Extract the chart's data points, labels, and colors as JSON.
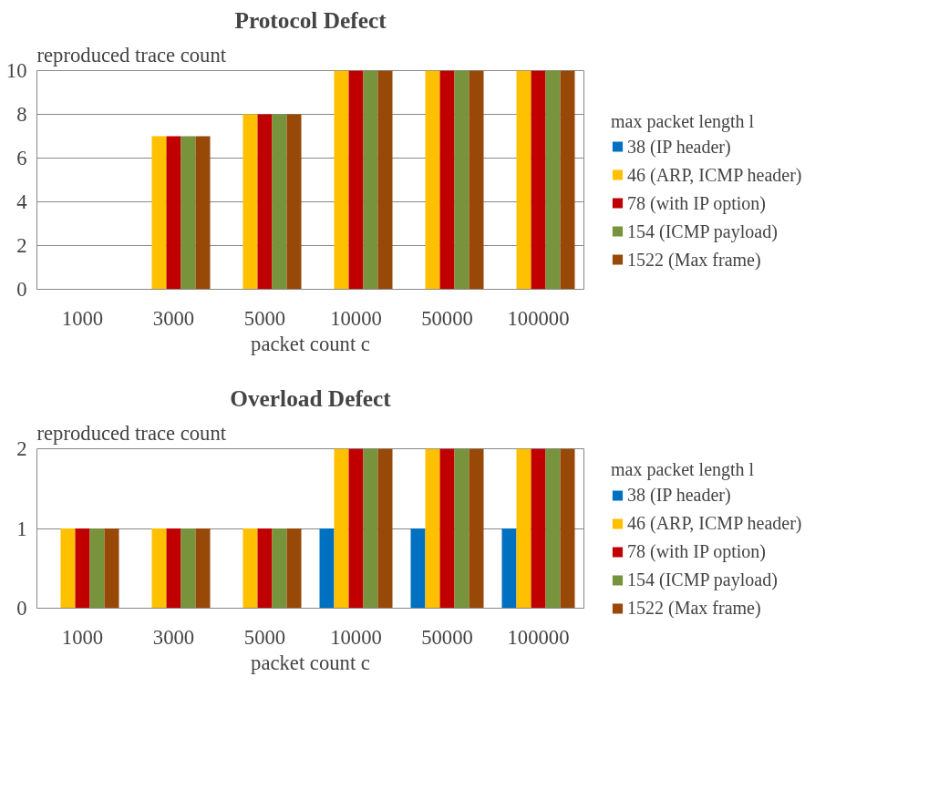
{
  "chart_data": [
    {
      "type": "bar",
      "title": "Protocol Defect",
      "ylabel": "reproduced trace count",
      "xlabel": "packet count c",
      "legend_title": "max packet length l",
      "categories": [
        "1000",
        "3000",
        "5000",
        "10000",
        "50000",
        "100000"
      ],
      "series": [
        {
          "name": "38 (IP header)",
          "color": "#0070c0",
          "values": [
            0,
            0,
            0,
            0,
            0,
            0
          ]
        },
        {
          "name": "46 (ARP, ICMP header)",
          "color": "#ffc000",
          "values": [
            0,
            7,
            8,
            10,
            10,
            10
          ]
        },
        {
          "name": "78 (with IP option)",
          "color": "#c00000",
          "values": [
            0,
            7,
            8,
            10,
            10,
            10
          ]
        },
        {
          "name": "154 (ICMP payload)",
          "color": "#77933c",
          "values": [
            0,
            7,
            8,
            10,
            10,
            10
          ]
        },
        {
          "name": "1522 (Max frame)",
          "color": "#984807",
          "values": [
            0,
            7,
            8,
            10,
            10,
            10
          ]
        }
      ],
      "ylim": [
        0,
        10
      ],
      "yticks": [
        0,
        2,
        4,
        6,
        8,
        10
      ],
      "grid": "y",
      "legend": "right"
    },
    {
      "type": "bar",
      "title": "Overload Defect",
      "ylabel": "reproduced trace count",
      "xlabel": "packet count c",
      "legend_title": "max packet length l",
      "categories": [
        "1000",
        "3000",
        "5000",
        "10000",
        "50000",
        "100000"
      ],
      "series": [
        {
          "name": "38 (IP header)",
          "color": "#0070c0",
          "values": [
            0,
            0,
            0,
            1,
            1,
            1
          ]
        },
        {
          "name": "46 (ARP, ICMP header)",
          "color": "#ffc000",
          "values": [
            1,
            1,
            1,
            2,
            2,
            2
          ]
        },
        {
          "name": "78 (with IP option)",
          "color": "#c00000",
          "values": [
            1,
            1,
            1,
            2,
            2,
            2
          ]
        },
        {
          "name": "154 (ICMP payload)",
          "color": "#77933c",
          "values": [
            1,
            1,
            1,
            2,
            2,
            2
          ]
        },
        {
          "name": "1522 (Max frame)",
          "color": "#984807",
          "values": [
            1,
            1,
            1,
            2,
            2,
            2
          ]
        }
      ],
      "ylim": [
        0,
        2
      ],
      "yticks": [
        0,
        1,
        2
      ],
      "grid": "y",
      "legend": "right"
    }
  ]
}
